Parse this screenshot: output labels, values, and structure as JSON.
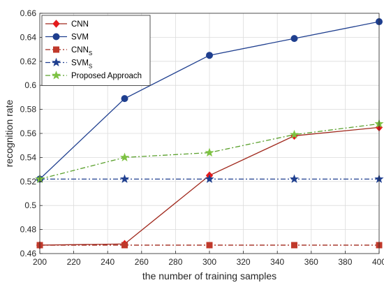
{
  "chart_data": {
    "type": "line",
    "title": "",
    "xlabel": "the number of training samples",
    "ylabel": "recognition rate",
    "xlim": [
      200,
      400
    ],
    "ylim": [
      0.46,
      0.66
    ],
    "x_ticks": [
      200,
      220,
      240,
      260,
      280,
      300,
      320,
      340,
      360,
      380,
      400
    ],
    "y_ticks": [
      0.46,
      0.48,
      0.5,
      0.52,
      0.54,
      0.56,
      0.58,
      0.6,
      0.62,
      0.64,
      0.66
    ],
    "x_tick_labels": [
      "200",
      "220",
      "240",
      "260",
      "280",
      "300",
      "320",
      "340",
      "360",
      "380",
      "400"
    ],
    "y_tick_labels": [
      "0.46",
      "0.48",
      "0.5",
      "0.52",
      "0.54",
      "0.56",
      "0.58",
      "0.6",
      "0.62",
      "0.64",
      "0.66"
    ],
    "grid": true,
    "legend_position": "top-left",
    "series": [
      {
        "name": "CNN",
        "name_sub": "",
        "color": "#e41a1c",
        "line_color": "#a0281c",
        "dash": "solid",
        "marker": "diamond",
        "x": [
          200,
          250,
          300,
          350,
          400
        ],
        "values": [
          0.467,
          0.468,
          0.525,
          0.558,
          0.565
        ]
      },
      {
        "name": "SVM",
        "name_sub": "",
        "color": "#1f3f8f",
        "line_color": "#1f3f8f",
        "dash": "solid",
        "marker": "circle",
        "x": [
          200,
          250,
          300,
          350,
          400
        ],
        "values": [
          0.522,
          0.589,
          0.625,
          0.639,
          0.653
        ]
      },
      {
        "name": "CNN",
        "name_sub": "S",
        "color": "#c0392b",
        "line_color": "#a0281c",
        "dash": "dashdot",
        "marker": "square",
        "x": [
          200,
          250,
          300,
          350,
          400
        ],
        "values": [
          0.467,
          0.467,
          0.467,
          0.467,
          0.467
        ]
      },
      {
        "name": "SVM",
        "name_sub": "S",
        "color": "#1f3f8f",
        "line_color": "#1f3f8f",
        "dash": "dashdot",
        "marker": "star",
        "x": [
          200,
          250,
          300,
          350,
          400
        ],
        "values": [
          0.522,
          0.522,
          0.522,
          0.522,
          0.522
        ]
      },
      {
        "name": "Proposed Approach",
        "name_sub": "",
        "color": "#7dc242",
        "line_color": "#5aa02c",
        "dash": "dashdot",
        "marker": "star",
        "x": [
          200,
          250,
          300,
          350,
          400
        ],
        "values": [
          0.522,
          0.54,
          0.544,
          0.559,
          0.568
        ]
      }
    ]
  }
}
